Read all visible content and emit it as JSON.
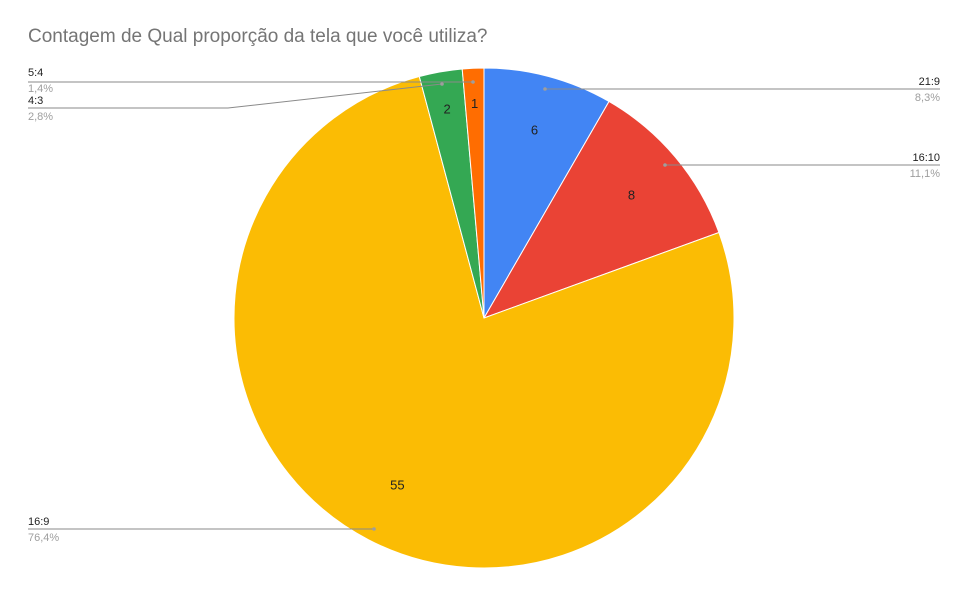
{
  "chart_data": {
    "type": "pie",
    "title": "Contagem de Qual proporção da tela que você utiliza?",
    "start_angle_deg": 0,
    "direction": "clockwise",
    "slices": [
      {
        "label": "21:9",
        "value": 6,
        "value_label": "6",
        "percent_label": "8,3%",
        "color": "#4285F4"
      },
      {
        "label": "16:10",
        "value": 8,
        "value_label": "8",
        "percent_label": "11,1%",
        "color": "#EA4335"
      },
      {
        "label": "16:9",
        "value": 55,
        "value_label": "55",
        "percent_label": "76,4%",
        "color": "#FBBC04"
      },
      {
        "label": "4:3",
        "value": 2,
        "value_label": "2",
        "percent_label": "2,8%",
        "color": "#34A853"
      },
      {
        "label": "5:4",
        "value": 1,
        "value_label": "1",
        "percent_label": "1,4%",
        "color": "#FF6D01"
      }
    ]
  }
}
